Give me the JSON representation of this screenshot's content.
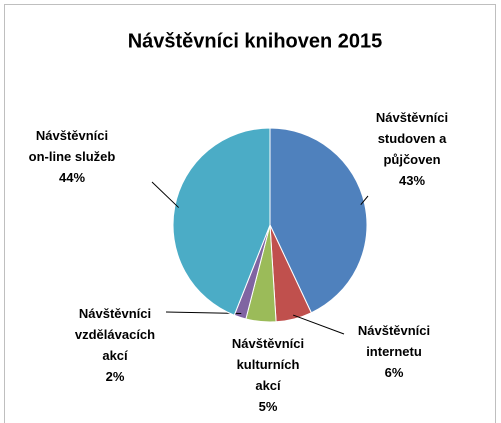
{
  "chart_data": {
    "type": "pie",
    "title": "Návštěvníci knihoven 2015",
    "categories": [
      "Návštěvníci studoven a půjčoven",
      "Návštěvníci internetu",
      "Návštěvníci kulturních akcí",
      "Návštěvníci vzdělávacích akcí",
      "Návštěvníci on-line služeb"
    ],
    "values": [
      43,
      6,
      5,
      2,
      44
    ],
    "value_labels": [
      "43%",
      "6%",
      "5%",
      "2%",
      "44%"
    ],
    "colors": [
      "#4f81bd",
      "#c0504d",
      "#9bbb59",
      "#8064a2",
      "#4bacc6"
    ]
  }
}
